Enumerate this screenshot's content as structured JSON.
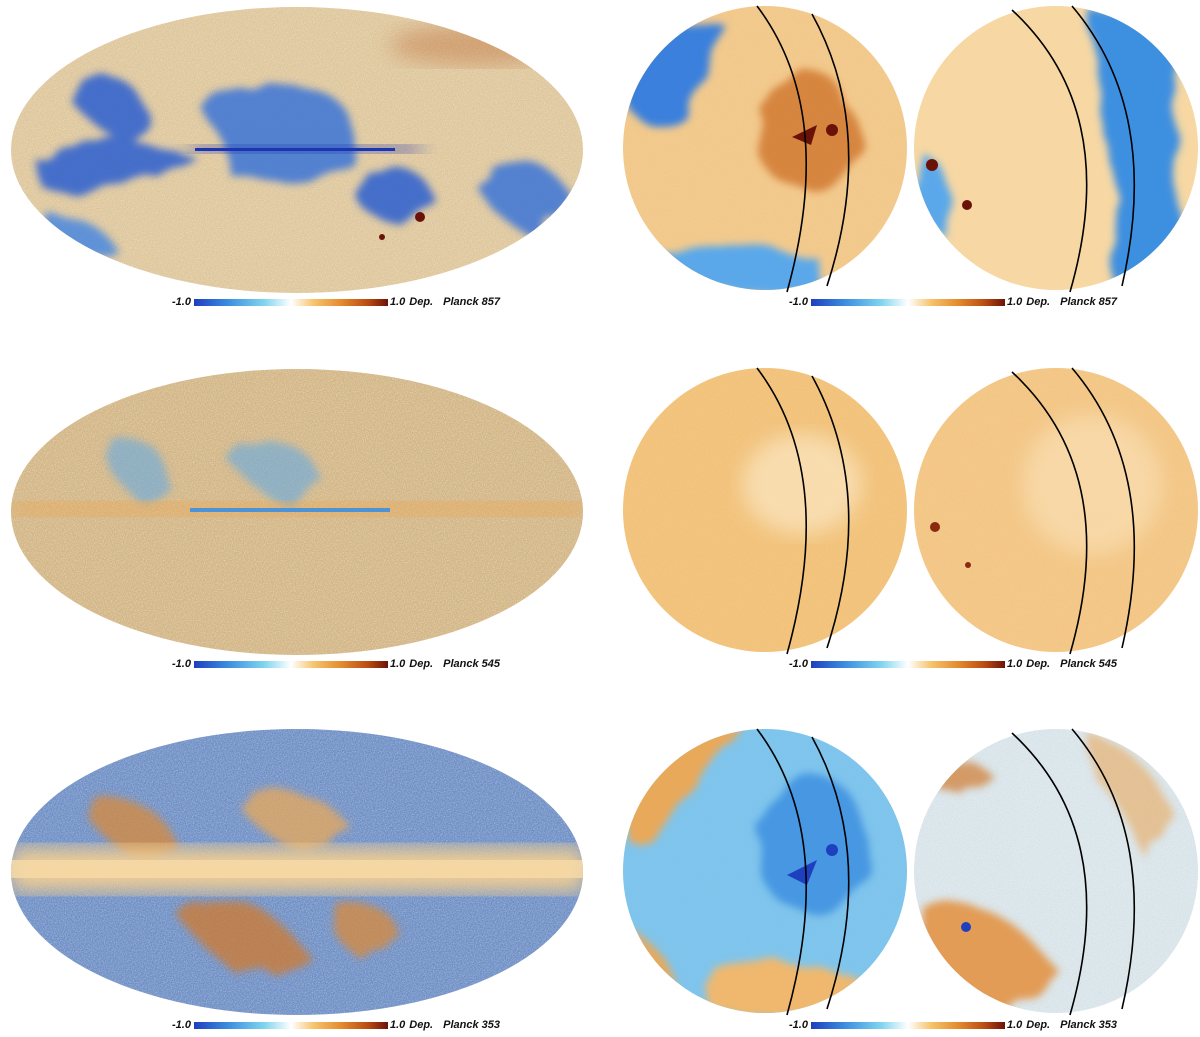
{
  "colormap": {
    "stops": [
      "#1e3fbf",
      "#3d8fe0",
      "#7fd4ee",
      "#ffffff",
      "#f6c36b",
      "#e48a2e",
      "#b84a12",
      "#6b1208"
    ]
  },
  "rows": [
    {
      "label": "Planck 857",
      "mollweide": {
        "min_label": "-1.0",
        "max_label": "1.0",
        "dep_label": "Dep.",
        "map_label": "Planck 857"
      },
      "spheres": {
        "min_label": "-1.0",
        "max_label": "1.0",
        "dep_label": "Dep.",
        "map_label": "Planck 857"
      }
    },
    {
      "label": "Planck 545",
      "mollweide": {
        "min_label": "-1.0",
        "max_label": "1.0",
        "dep_label": "Dep.",
        "map_label": "Planck 545"
      },
      "spheres": {
        "min_label": "-1.0",
        "max_label": "1.0",
        "dep_label": "Dep.",
        "map_label": "Planck 545"
      }
    },
    {
      "label": "Planck 353",
      "mollweide": {
        "min_label": "-1.0",
        "max_label": "1.0",
        "dep_label": "Dep.",
        "map_label": "Planck 353"
      },
      "spheres": {
        "min_label": "-1.0",
        "max_label": "1.0",
        "dep_label": "Dep.",
        "map_label": "Planck 353"
      }
    }
  ]
}
